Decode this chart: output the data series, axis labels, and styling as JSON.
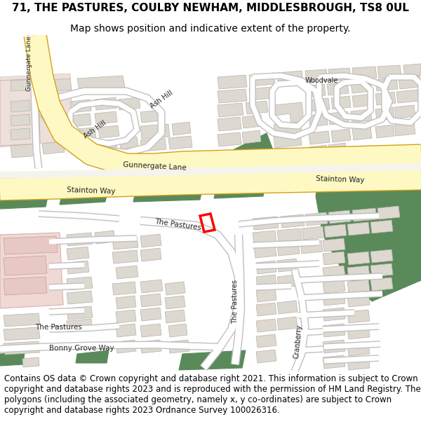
{
  "title_line1": "71, THE PASTURES, COULBY NEWHAM, MIDDLESBROUGH, TS8 0UL",
  "title_line2": "Map shows position and indicative extent of the property.",
  "footer_text": "Contains OS data © Crown copyright and database right 2021. This information is subject to Crown copyright and database rights 2023 and is reproduced with the permission of HM Land Registry. The polygons (including the associated geometry, namely x, y co-ordinates) are subject to Crown copyright and database rights 2023 Ordnance Survey 100026316.",
  "title_fontsize": 11,
  "subtitle_fontsize": 10,
  "footer_fontsize": 8.5,
  "bg_color": "#ffffff",
  "map_bg": "#f5f3ee",
  "road_major_color": "#fef9c3",
  "road_major_border": "#d4a017",
  "road_minor_color": "#ffffff",
  "road_minor_border": "#c0c0c0",
  "building_color": "#ddd8d0",
  "building_border": "#b8b2aa",
  "green_color": "#5a8a5a",
  "pink_color": "#f0d8d5",
  "plot_color": "#ff0000"
}
